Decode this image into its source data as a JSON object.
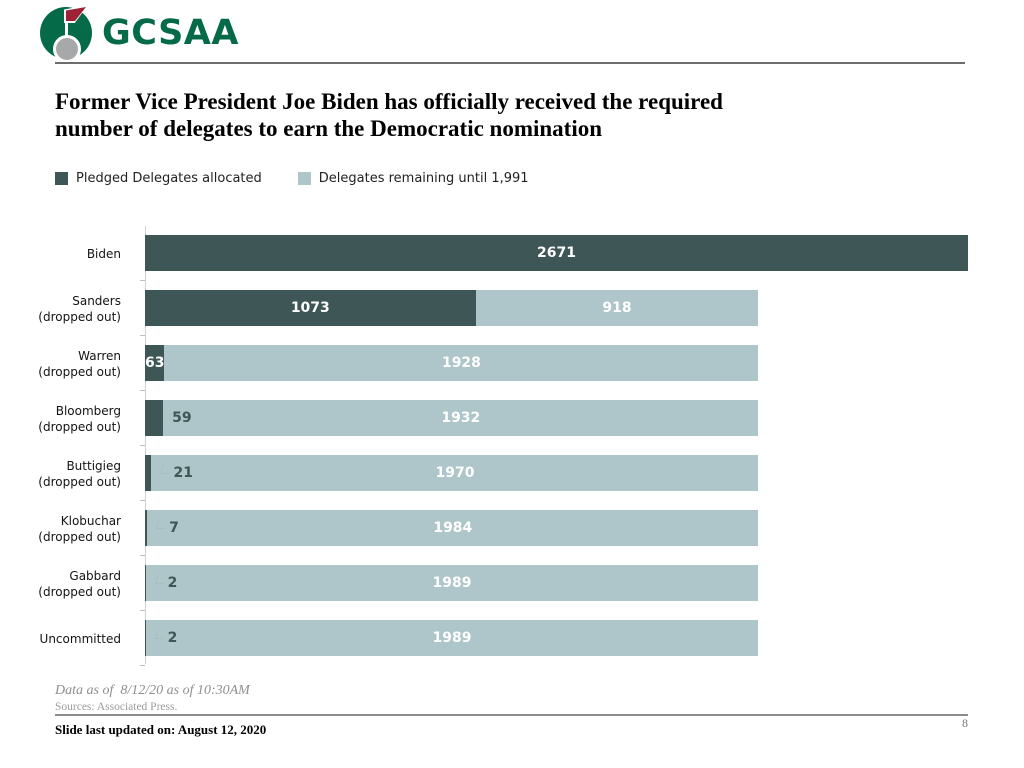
{
  "logo": {
    "text": "GCSAA",
    "green": "#046a47",
    "flag_color": "#9d2235",
    "ball_color": "#a7a8aa"
  },
  "title": {
    "line1": "Former Vice President Joe Biden has officially received the required",
    "line2": "number of delegates to earn the Democratic nomination"
  },
  "legend": [
    {
      "label": "Pledged Delegates allocated",
      "color": "#3e5756"
    },
    {
      "label": "Delegates remaining until 1,991",
      "color": "#aec6c9"
    }
  ],
  "chart_data": {
    "type": "bar",
    "orientation": "horizontal",
    "x_max": 2671,
    "grid": false,
    "legend_position": "top-left",
    "categories": [
      "Biden",
      "Sanders (dropped out)",
      "Warren (dropped out)",
      "Bloomberg (dropped out)",
      "Buttigieg (dropped out)",
      "Klobuchar (dropped out)",
      "Gabbard (dropped out)",
      "Uncommitted"
    ],
    "series": [
      {
        "name": "Pledged Delegates allocated",
        "color": "#3e5756",
        "values": [
          2671,
          1073,
          63,
          59,
          21,
          7,
          2,
          2
        ]
      },
      {
        "name": "Delegates remaining until 1,991",
        "color": "#aec6c9",
        "values": [
          0,
          918,
          1928,
          1932,
          1970,
          1984,
          1989,
          1989
        ]
      }
    ],
    "rows": [
      {
        "name": "Biden",
        "sub": "",
        "allocated": 2671,
        "remaining": 0,
        "allocated_label": "2671",
        "remaining_label": "",
        "label_inside": true,
        "leader": false
      },
      {
        "name": "Sanders",
        "sub": "(dropped out)",
        "allocated": 1073,
        "remaining": 918,
        "allocated_label": "1073",
        "remaining_label": "918",
        "label_inside": true,
        "leader": false
      },
      {
        "name": "Warren",
        "sub": "(dropped out)",
        "allocated": 63,
        "remaining": 1928,
        "allocated_label": "63",
        "remaining_label": "1928",
        "label_inside": true,
        "leader": false
      },
      {
        "name": "Bloomberg",
        "sub": "(dropped out)",
        "allocated": 59,
        "remaining": 1932,
        "allocated_label": "59",
        "remaining_label": "1932",
        "label_inside": false,
        "leader": false
      },
      {
        "name": "Buttigieg",
        "sub": "(dropped out)",
        "allocated": 21,
        "remaining": 1970,
        "allocated_label": "21",
        "remaining_label": "1970",
        "label_inside": false,
        "leader": true
      },
      {
        "name": "Klobuchar",
        "sub": "(dropped out)",
        "allocated": 7,
        "remaining": 1984,
        "allocated_label": "7",
        "remaining_label": "1984",
        "label_inside": false,
        "leader": true
      },
      {
        "name": "Gabbard",
        "sub": "(dropped out)",
        "allocated": 2,
        "remaining": 1989,
        "allocated_label": "2",
        "remaining_label": "1989",
        "label_inside": false,
        "leader": true
      },
      {
        "name": "Uncommitted",
        "sub": "",
        "allocated": 2,
        "remaining": 1989,
        "allocated_label": "2",
        "remaining_label": "1989",
        "label_inside": false,
        "leader": true
      }
    ]
  },
  "footer": {
    "data_as_of": "Data as of  8/12/20 as of 10:30AM",
    "sources": "Sources: Associated Press.",
    "slide_updated": "Slide last updated on: August 12, 2020",
    "page_number": "8"
  }
}
